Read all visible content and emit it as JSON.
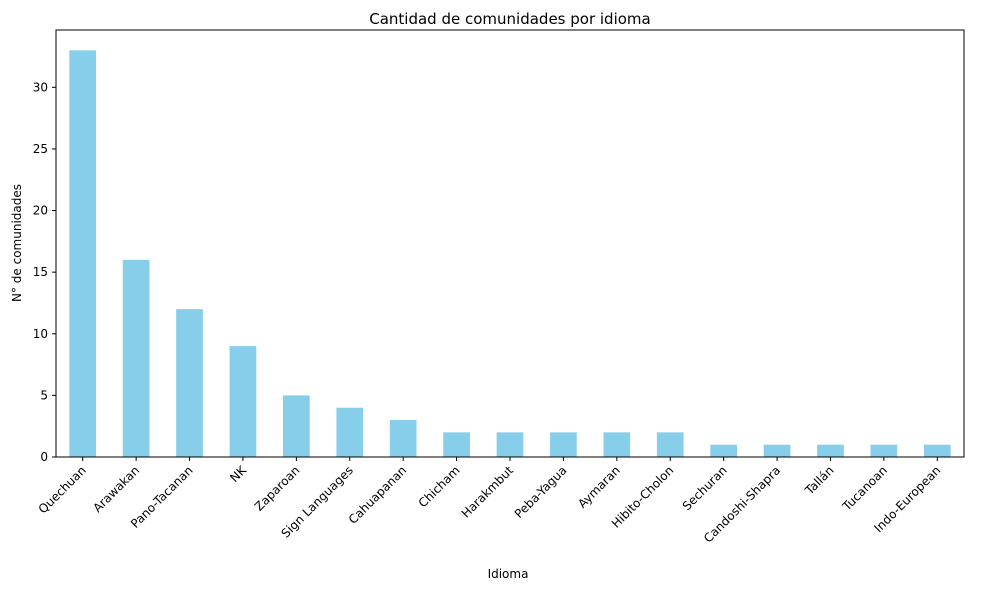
{
  "chart_data": {
    "type": "bar",
    "title": "Cantidad de comunidades por idioma",
    "xlabel": "Idioma",
    "ylabel": "N° de comunidades",
    "categories": [
      "Quechuan",
      "Arawakan",
      "Pano-Tacanan",
      "NK",
      "Zaparoan",
      "Sign Languages",
      "Cahuapanan",
      "Chicham",
      "Harakmbut",
      "Peba-Yagua",
      "Aymaran",
      "Hibito-Cholon",
      "Sechuran",
      "Candoshi-Shapra",
      "Tallán",
      "Tucanoan",
      "Indo-European"
    ],
    "values": [
      33,
      16,
      12,
      9,
      5,
      4,
      3,
      2,
      2,
      2,
      2,
      2,
      1,
      1,
      1,
      1,
      1
    ],
    "yticks": [
      0,
      5,
      10,
      15,
      20,
      25,
      30
    ],
    "ylim": [
      0,
      34.65
    ],
    "grid": false,
    "colors": {
      "bar": "#87ceeb"
    }
  }
}
